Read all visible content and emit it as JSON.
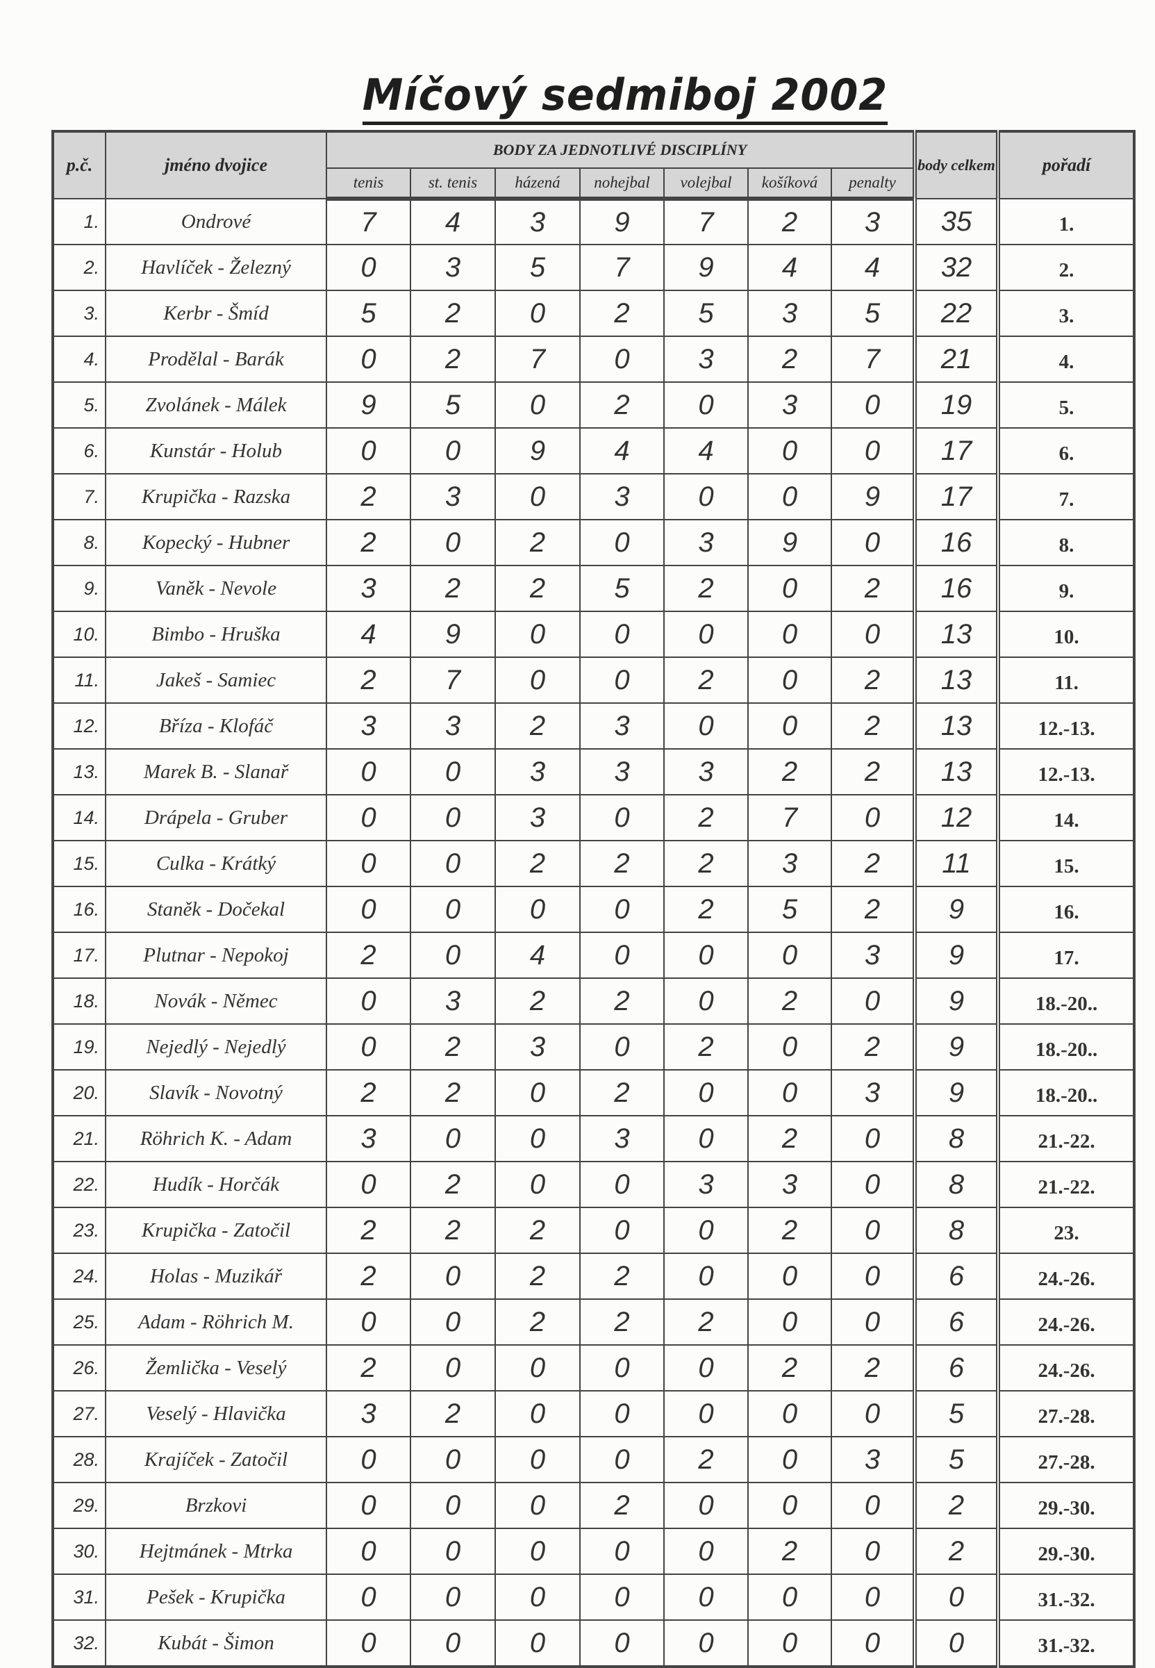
{
  "title": "Míčový sedmiboj 2002",
  "header": {
    "pc": "p.č.",
    "name": "jméno dvojice",
    "group": "BODY ZA JEDNOTLIVÉ DISCIPLÍNY",
    "disciplines": [
      "tenis",
      "st. tenis",
      "házená",
      "nohejbal",
      "volejbal",
      "košíková",
      "penalty"
    ],
    "total": "body celkem",
    "rank": "pořadí"
  },
  "rows": [
    {
      "pc": "1.",
      "name": "Ondrové",
      "scores": [
        7,
        4,
        3,
        9,
        7,
        2,
        3
      ],
      "total": 35,
      "rank": "1."
    },
    {
      "pc": "2.",
      "name": "Havlíček - Železný",
      "scores": [
        0,
        3,
        5,
        7,
        9,
        4,
        4
      ],
      "total": 32,
      "rank": "2."
    },
    {
      "pc": "3.",
      "name": "Kerbr - Šmíd",
      "scores": [
        5,
        2,
        0,
        2,
        5,
        3,
        5
      ],
      "total": 22,
      "rank": "3."
    },
    {
      "pc": "4.",
      "name": "Prodělal - Barák",
      "scores": [
        0,
        2,
        7,
        0,
        3,
        2,
        7
      ],
      "total": 21,
      "rank": "4."
    },
    {
      "pc": "5.",
      "name": "Zvolánek - Málek",
      "scores": [
        9,
        5,
        0,
        2,
        0,
        3,
        0
      ],
      "total": 19,
      "rank": "5."
    },
    {
      "pc": "6.",
      "name": "Kunstár - Holub",
      "scores": [
        0,
        0,
        9,
        4,
        4,
        0,
        0
      ],
      "total": 17,
      "rank": "6."
    },
    {
      "pc": "7.",
      "name": "Krupička - Razska",
      "scores": [
        2,
        3,
        0,
        3,
        0,
        0,
        9
      ],
      "total": 17,
      "rank": "7."
    },
    {
      "pc": "8.",
      "name": "Kopecký - Hubner",
      "scores": [
        2,
        0,
        2,
        0,
        3,
        9,
        0
      ],
      "total": 16,
      "rank": "8."
    },
    {
      "pc": "9.",
      "name": "Vaněk - Nevole",
      "scores": [
        3,
        2,
        2,
        5,
        2,
        0,
        2
      ],
      "total": 16,
      "rank": "9."
    },
    {
      "pc": "10.",
      "name": "Bimbo - Hruška",
      "scores": [
        4,
        9,
        0,
        0,
        0,
        0,
        0
      ],
      "total": 13,
      "rank": "10."
    },
    {
      "pc": "11.",
      "name": "Jakeš - Samiec",
      "scores": [
        2,
        7,
        0,
        0,
        2,
        0,
        2
      ],
      "total": 13,
      "rank": "11."
    },
    {
      "pc": "12.",
      "name": "Bříza - Klofáč",
      "scores": [
        3,
        3,
        2,
        3,
        0,
        0,
        2
      ],
      "total": 13,
      "rank": "12.-13."
    },
    {
      "pc": "13.",
      "name": "Marek B. - Slanař",
      "scores": [
        0,
        0,
        3,
        3,
        3,
        2,
        2
      ],
      "total": 13,
      "rank": "12.-13."
    },
    {
      "pc": "14.",
      "name": "Drápela - Gruber",
      "scores": [
        0,
        0,
        3,
        0,
        2,
        7,
        0
      ],
      "total": 12,
      "rank": "14."
    },
    {
      "pc": "15.",
      "name": "Culka - Krátký",
      "scores": [
        0,
        0,
        2,
        2,
        2,
        3,
        2
      ],
      "total": 11,
      "rank": "15."
    },
    {
      "pc": "16.",
      "name": "Staněk - Dočekal",
      "scores": [
        0,
        0,
        0,
        0,
        2,
        5,
        2
      ],
      "total": 9,
      "rank": "16."
    },
    {
      "pc": "17.",
      "name": "Plutnar - Nepokoj",
      "scores": [
        2,
        0,
        4,
        0,
        0,
        0,
        3
      ],
      "total": 9,
      "rank": "17."
    },
    {
      "pc": "18.",
      "name": "Novák - Němec",
      "scores": [
        0,
        3,
        2,
        2,
        0,
        2,
        0
      ],
      "total": 9,
      "rank": "18.-20.."
    },
    {
      "pc": "19.",
      "name": "Nejedlý - Nejedlý",
      "scores": [
        0,
        2,
        3,
        0,
        2,
        0,
        2
      ],
      "total": 9,
      "rank": "18.-20.."
    },
    {
      "pc": "20.",
      "name": "Slavík - Novotný",
      "scores": [
        2,
        2,
        0,
        2,
        0,
        0,
        3
      ],
      "total": 9,
      "rank": "18.-20.."
    },
    {
      "pc": "21.",
      "name": "Röhrich K. - Adam",
      "scores": [
        3,
        0,
        0,
        3,
        0,
        2,
        0
      ],
      "total": 8,
      "rank": "21.-22."
    },
    {
      "pc": "22.",
      "name": "Hudík - Horčák",
      "scores": [
        0,
        2,
        0,
        0,
        3,
        3,
        0
      ],
      "total": 8,
      "rank": "21.-22."
    },
    {
      "pc": "23.",
      "name": "Krupička - Zatočil",
      "scores": [
        2,
        2,
        2,
        0,
        0,
        2,
        0
      ],
      "total": 8,
      "rank": "23."
    },
    {
      "pc": "24.",
      "name": "Holas - Muzikář",
      "scores": [
        2,
        0,
        2,
        2,
        0,
        0,
        0
      ],
      "total": 6,
      "rank": "24.-26."
    },
    {
      "pc": "25.",
      "name": "Adam - Röhrich M.",
      "scores": [
        0,
        0,
        2,
        2,
        2,
        0,
        0
      ],
      "total": 6,
      "rank": "24.-26."
    },
    {
      "pc": "26.",
      "name": "Žemlička - Veselý",
      "scores": [
        2,
        0,
        0,
        0,
        0,
        2,
        2
      ],
      "total": 6,
      "rank": "24.-26."
    },
    {
      "pc": "27.",
      "name": "Veselý - Hlavička",
      "scores": [
        3,
        2,
        0,
        0,
        0,
        0,
        0
      ],
      "total": 5,
      "rank": "27.-28."
    },
    {
      "pc": "28.",
      "name": "Krajíček - Zatočil",
      "scores": [
        0,
        0,
        0,
        0,
        2,
        0,
        3
      ],
      "total": 5,
      "rank": "27.-28."
    },
    {
      "pc": "29.",
      "name": "Brzkovi",
      "scores": [
        0,
        0,
        0,
        2,
        0,
        0,
        0
      ],
      "total": 2,
      "rank": "29.-30."
    },
    {
      "pc": "30.",
      "name": "Hejtmánek - Mtrka",
      "scores": [
        0,
        0,
        0,
        0,
        0,
        2,
        0
      ],
      "total": 2,
      "rank": "29.-30."
    },
    {
      "pc": "31.",
      "name": "Pešek - Krupička",
      "scores": [
        0,
        0,
        0,
        0,
        0,
        0,
        0
      ],
      "total": 0,
      "rank": "31.-32."
    },
    {
      "pc": "32.",
      "name": "Kubát - Šimon",
      "scores": [
        0,
        0,
        0,
        0,
        0,
        0,
        0
      ],
      "total": 0,
      "rank": "31.-32."
    }
  ]
}
